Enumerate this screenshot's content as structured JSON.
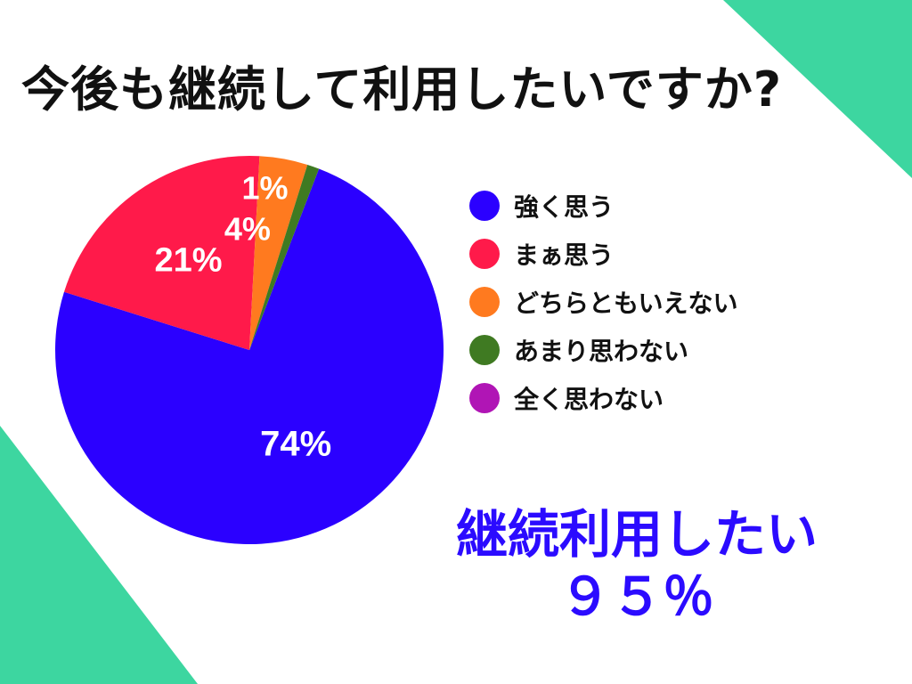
{
  "colors": {
    "background": "#ffffff",
    "decoration": "#3dd6a0",
    "title": "#111111",
    "summary": "#2b0bff",
    "slice_label": "#ffffff"
  },
  "summary": {
    "line1": "継続利用したい",
    "line2": "９５％"
  },
  "chart_data": {
    "type": "pie",
    "title": "今後も継続して利用したいですか?",
    "legend_position": "right",
    "slices": [
      {
        "label": "強く思う",
        "value": 74,
        "display": "74%",
        "color": "#2b00ff"
      },
      {
        "label": "まぁ思う",
        "value": 21,
        "display": "21%",
        "color": "#ff1a4a"
      },
      {
        "label": "どちらともいえない",
        "value": 4,
        "display": "4%",
        "color": "#ff7a1f"
      },
      {
        "label": "あまり思わない",
        "value": 1,
        "display": "1%",
        "color": "#3f7a22"
      },
      {
        "label": "全く思わない",
        "value": 0,
        "display": "",
        "color": "#b015b5"
      }
    ]
  }
}
